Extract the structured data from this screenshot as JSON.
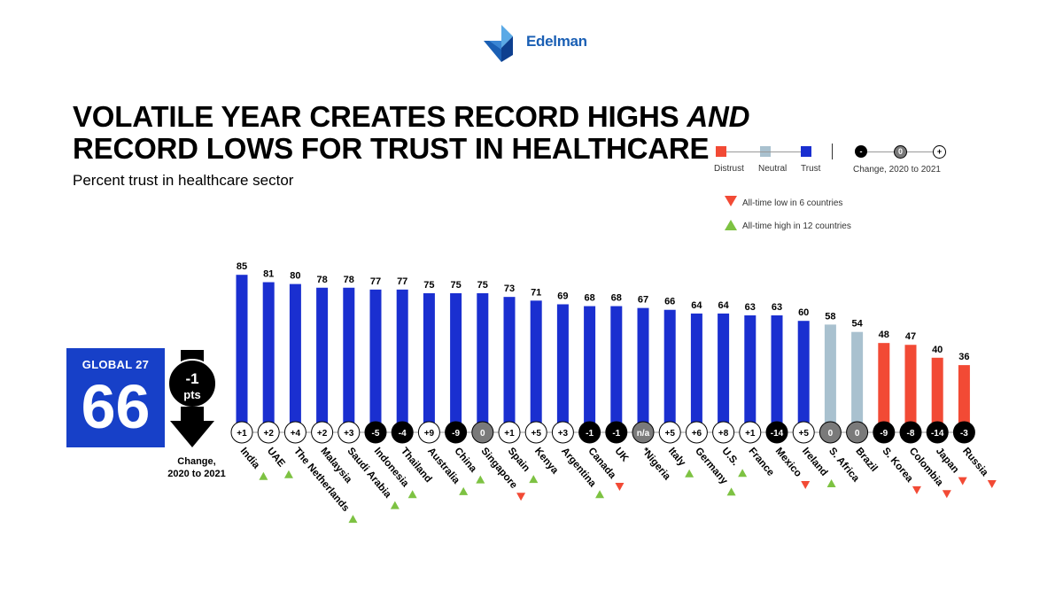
{
  "brand": {
    "name": "Edelman"
  },
  "header": {
    "title_line1": "VOLATILE YEAR CREATES RECORD HIGHS ",
    "title_and": "AND",
    "title_line2": "RECORD LOWS FOR TRUST IN HEALTHCARE",
    "subtitle": "Percent trust in healthcare sector"
  },
  "legend": {
    "distrust": "Distrust",
    "neutral": "Neutral",
    "trust": "Trust",
    "minus": "-",
    "zero": "0",
    "plus": "+",
    "change_label": "Change, 2020 to 2021",
    "low_note": "All-time low in 6 countries",
    "high_note": "All-time high in 12 countries"
  },
  "colors": {
    "trust": "#1a2fd0",
    "neutral": "#a9c1cf",
    "distrust": "#f24a35",
    "negative": "#000000",
    "zero_change": "#7a7a7a",
    "positive": "#ffffff",
    "up_marker": "#7dc242",
    "down_marker": "#f24a35"
  },
  "global": {
    "label": "GLOBAL 27",
    "value": "66",
    "change": "-1",
    "change_unit": "pts",
    "caption_line1": "Change,",
    "caption_line2": "2020 to 2021"
  },
  "chart_data": {
    "type": "bar",
    "title": "Percent trust in healthcare sector",
    "ylim": [
      0,
      100
    ],
    "categories": [
      "India",
      "UAE",
      "The Netherlands",
      "Malaysia",
      "Saudi Arabia",
      "Indonesia",
      "Thailand",
      "Australia",
      "China",
      "Singapore",
      "Spain",
      "Kenya",
      "Argentina",
      "Canada",
      "UK",
      "*Nigeria",
      "Italy",
      "Germany",
      "U.S.",
      "France",
      "Mexico",
      "Ireland",
      "S. Africa",
      "Brazil",
      "S. Korea",
      "Colombia",
      "Japan",
      "Russia"
    ],
    "values": [
      85,
      81,
      80,
      78,
      78,
      77,
      77,
      75,
      75,
      75,
      73,
      71,
      69,
      68,
      68,
      67,
      66,
      64,
      64,
      63,
      63,
      60,
      58,
      54,
      48,
      47,
      40,
      36
    ],
    "level": [
      "trust",
      "trust",
      "trust",
      "trust",
      "trust",
      "trust",
      "trust",
      "trust",
      "trust",
      "trust",
      "trust",
      "trust",
      "trust",
      "trust",
      "trust",
      "trust",
      "trust",
      "trust",
      "trust",
      "trust",
      "trust",
      "trust",
      "neutral",
      "neutral",
      "distrust",
      "distrust",
      "distrust",
      "distrust"
    ],
    "change": [
      "+1",
      "+2",
      "+4",
      "+2",
      "+3",
      "-5",
      "-4",
      "+9",
      "-9",
      "0",
      "+1",
      "+5",
      "+3",
      "-1",
      "-1",
      "n/a",
      "+5",
      "+6",
      "+8",
      "+1",
      "-14",
      "+5",
      "0",
      "0",
      "-9",
      "-8",
      "-14",
      "-3"
    ],
    "marker": [
      "up",
      "up",
      "up",
      "",
      "up",
      "up",
      "",
      "up",
      "up",
      "down",
      "up",
      "",
      "up",
      "down",
      "",
      "",
      "up",
      "up",
      "up",
      "",
      "down",
      "up",
      "",
      "",
      "down",
      "down",
      "down",
      "down"
    ]
  }
}
